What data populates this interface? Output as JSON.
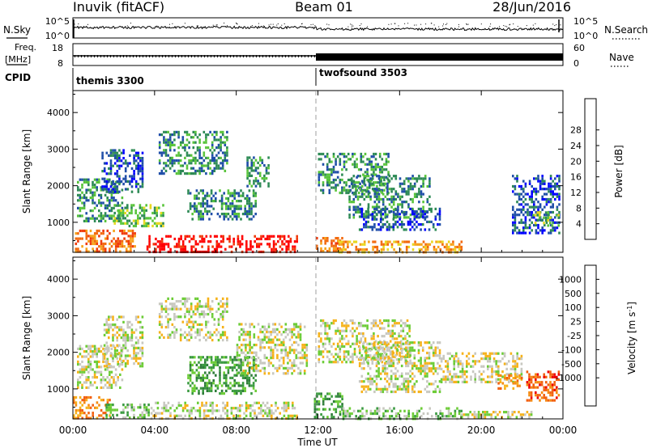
{
  "header": {
    "station": "Inuvik (fitACF)",
    "beam": "Beam 01",
    "date": "28/Jun/2016"
  },
  "params_panel": {
    "nsky_label": "N.Sky",
    "nsky_ticks": [
      "10^5",
      "10^0"
    ],
    "nsearch_label": "N.Search",
    "nsearch_ticks": [
      "10^5",
      "10^0"
    ],
    "freq_label_top": "Freq.",
    "freq_label_bottom": "[MHz]",
    "freq_ticks": [
      "18",
      "8"
    ],
    "nave_label": "Nave",
    "nave_ticks": [
      "60",
      "0"
    ],
    "cpid_label": "CPID",
    "cpid_modes": [
      {
        "name": "themis 3300",
        "start_hour": 0
      },
      {
        "name": "twofsound 3503",
        "start_hour": 12
      }
    ]
  },
  "x_axis": {
    "label": "Time UT",
    "ticks": [
      "00:00",
      "04:00",
      "08:00",
      "12:00",
      "16:00",
      "20:00",
      "00:00"
    ]
  },
  "chart_data": [
    {
      "type": "heatmap",
      "name": "power",
      "ylabel": "Slant Range [km]",
      "yticks": [
        "1000",
        "2000",
        "3000",
        "4000"
      ],
      "ylim": [
        180,
        4600
      ],
      "xlim": [
        0,
        24
      ],
      "colorbar_label": "Power [dB]",
      "colorbar_ticks": [
        "4",
        "8",
        "12",
        "16",
        "20",
        "24",
        "28"
      ],
      "colors": [
        "#0000ff",
        "#1f4ea8",
        "#2d8a55",
        "#58c43a",
        "#e8d820",
        "#f6a21a",
        "#f26a0f",
        "#f03a0a",
        "#ff0000"
      ],
      "regions": [
        {
          "t": [
            0.1,
            3.0
          ],
          "r": [
            200,
            800
          ],
          "v": 6
        },
        {
          "t": [
            3.6,
            11.0
          ],
          "r": [
            200,
            650
          ],
          "v": 8
        },
        {
          "t": [
            11.9,
            13.2
          ],
          "r": [
            200,
            600
          ],
          "v": 6
        },
        {
          "t": [
            13.0,
            19.0
          ],
          "r": [
            200,
            500
          ],
          "v": 5
        },
        {
          "t": [
            0.2,
            2.4
          ],
          "r": [
            1000,
            2200
          ],
          "v": 2
        },
        {
          "t": [
            1.4,
            3.4
          ],
          "r": [
            1800,
            3000
          ],
          "v": 1
        },
        {
          "t": [
            2.0,
            4.4
          ],
          "r": [
            900,
            1500
          ],
          "v": 3
        },
        {
          "t": [
            4.2,
            7.6
          ],
          "r": [
            2300,
            3500
          ],
          "v": 2
        },
        {
          "t": [
            5.6,
            9.0
          ],
          "r": [
            1100,
            1900
          ],
          "v": 2
        },
        {
          "t": [
            8.5,
            9.6
          ],
          "r": [
            2000,
            2800
          ],
          "v": 2
        },
        {
          "t": [
            12.0,
            15.5
          ],
          "r": [
            1800,
            2900
          ],
          "v": 2
        },
        {
          "t": [
            13.5,
            17.5
          ],
          "r": [
            1100,
            2300
          ],
          "v": 2
        },
        {
          "t": [
            14.0,
            18.0
          ],
          "r": [
            800,
            1400
          ],
          "v": 1
        },
        {
          "t": [
            21.5,
            23.8
          ],
          "r": [
            700,
            2300
          ],
          "v": 1
        },
        {
          "t": [
            22.5,
            23.8
          ],
          "r": [
            900,
            1300
          ],
          "v": 3
        }
      ]
    },
    {
      "type": "heatmap",
      "name": "velocity",
      "ylabel": "Slant Range [km]",
      "yticks": [
        "1000",
        "2000",
        "3000",
        "4000"
      ],
      "ylim": [
        180,
        4600
      ],
      "xlim": [
        0,
        24
      ],
      "colorbar_label": "Velocity [m s^-1]",
      "colorbar_ticks": [
        "1000",
        "500",
        "100",
        "25",
        "-25",
        "-100",
        "-500",
        "-1000"
      ],
      "colors": [
        "#1e3fae",
        "#2a68c0",
        "#2f7d3a",
        "#3a9a40",
        "#6ccc36",
        "#c8c8c0",
        "#f6b21a",
        "#f58a12",
        "#f26010",
        "#ee0000"
      ],
      "regions": [
        {
          "t": [
            0.0,
            1.8
          ],
          "r": [
            200,
            800
          ],
          "v": 7
        },
        {
          "t": [
            1.6,
            3.8
          ],
          "r": [
            200,
            600
          ],
          "v": 4
        },
        {
          "t": [
            3.8,
            11.0
          ],
          "r": [
            200,
            650
          ],
          "v": 5
        },
        {
          "t": [
            11.8,
            13.2
          ],
          "r": [
            200,
            900
          ],
          "v": 3
        },
        {
          "t": [
            13.2,
            19.0
          ],
          "r": [
            200,
            500
          ],
          "v": 4
        },
        {
          "t": [
            19.0,
            22.5
          ],
          "r": [
            200,
            400
          ],
          "v": 5
        },
        {
          "t": [
            0.2,
            2.4
          ],
          "r": [
            1000,
            2200
          ],
          "v": 5
        },
        {
          "t": [
            1.5,
            3.4
          ],
          "r": [
            1600,
            3000
          ],
          "v": 5
        },
        {
          "t": [
            4.2,
            7.6
          ],
          "r": [
            2300,
            3500
          ],
          "v": 5
        },
        {
          "t": [
            5.6,
            9.0
          ],
          "r": [
            900,
            1900
          ],
          "v": 3
        },
        {
          "t": [
            8.0,
            11.5
          ],
          "r": [
            1400,
            2800
          ],
          "v": 5
        },
        {
          "t": [
            12.0,
            16.5
          ],
          "r": [
            1700,
            2900
          ],
          "v": 5
        },
        {
          "t": [
            14.0,
            18.0
          ],
          "r": [
            900,
            2300
          ],
          "v": 5
        },
        {
          "t": [
            18.0,
            22.0
          ],
          "r": [
            1200,
            2000
          ],
          "v": 5
        },
        {
          "t": [
            22.2,
            23.8
          ],
          "r": [
            700,
            1500
          ],
          "v": 8
        },
        {
          "t": [
            20.8,
            22.0
          ],
          "r": [
            1000,
            1400
          ],
          "v": 7
        }
      ]
    }
  ]
}
